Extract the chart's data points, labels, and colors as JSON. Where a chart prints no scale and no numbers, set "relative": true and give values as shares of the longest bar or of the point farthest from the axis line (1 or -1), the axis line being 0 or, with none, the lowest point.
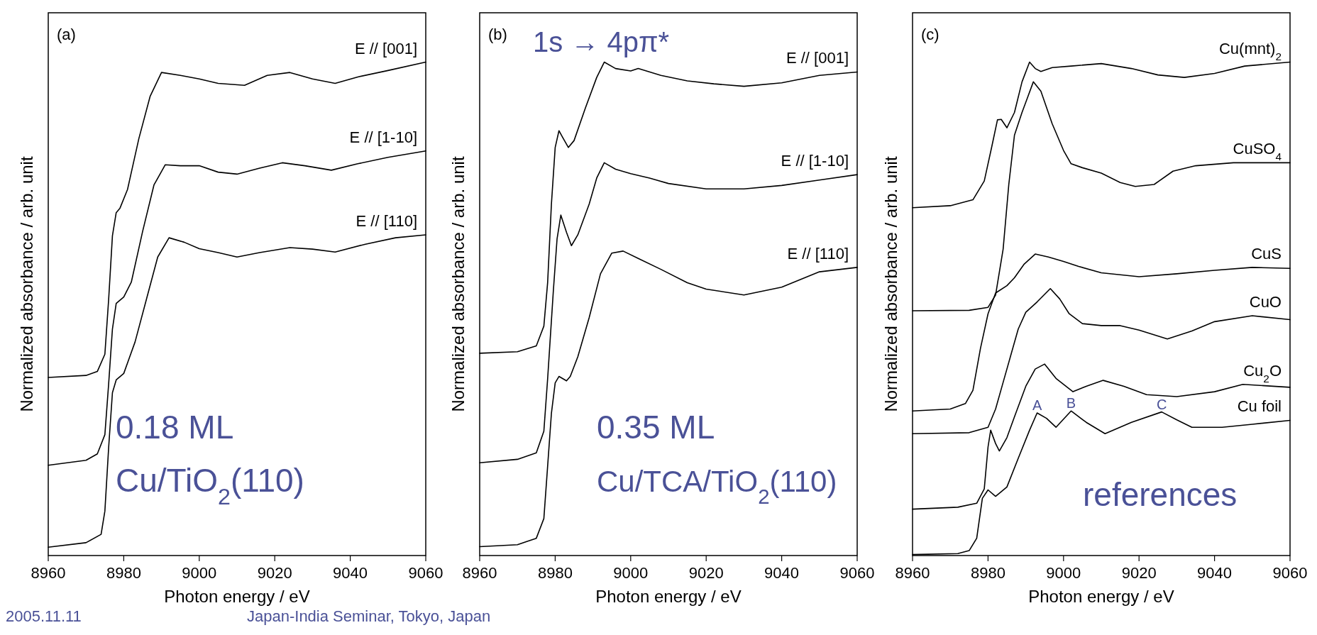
{
  "chart_data": [
    {
      "type": "line",
      "relative": true,
      "xlim": [
        8960,
        9060
      ],
      "xticks": [
        8960,
        8980,
        9000,
        9020,
        9040,
        9060
      ],
      "xlabel": "Photon energy / eV",
      "ylabel": "Normalized absorbance / arb. unit",
      "annotations": [
        "(a)",
        "0.18 ML",
        "Cu/TiO$_{2}$(110)",
        "2005.11.11",
        "Japan-India Seminar, Tokyo, Japan"
      ],
      "series": [
        {
          "name": "E // [001]",
          "color": "#000000",
          "x": [
            8960,
            8970,
            8973,
            8975,
            8976,
            8977,
            8978,
            8979,
            8981,
            8984,
            8987,
            8990,
            8995,
            9000,
            9005,
            9012,
            9018,
            9024,
            9030,
            9036,
            9042,
            9050,
            9060
          ],
          "values": [
            0.361,
            0.365,
            0.373,
            0.408,
            0.519,
            0.648,
            0.695,
            0.704,
            0.742,
            0.845,
            0.931,
            0.979,
            0.973,
            0.966,
            0.957,
            0.953,
            0.973,
            0.979,
            0.966,
            0.957,
            0.97,
            0.983,
            1
          ]
        },
        {
          "name": "E // [1-10]",
          "color": "#000000",
          "x": [
            8960,
            8970,
            8973,
            8975,
            8976,
            8977,
            8978,
            8980,
            8982,
            8985,
            8988,
            8991,
            8995,
            9000,
            9005,
            9010,
            9016,
            9022,
            9028,
            9035,
            9042,
            9050,
            9060
          ],
          "values": [
            0.183,
            0.193,
            0.206,
            0.245,
            0.348,
            0.459,
            0.511,
            0.524,
            0.554,
            0.657,
            0.751,
            0.792,
            0.79,
            0.79,
            0.777,
            0.773,
            0.785,
            0.796,
            0.79,
            0.781,
            0.794,
            0.807,
            0.82
          ]
        },
        {
          "name": "E // [110]",
          "color": "#000000",
          "x": [
            8960,
            8970,
            8974,
            8975,
            8976,
            8977,
            8978,
            8980,
            8983,
            8986,
            8989,
            8992,
            8996,
            9000,
            9005,
            9010,
            9016,
            9024,
            9030,
            9036,
            9044,
            9052,
            9060
          ],
          "values": [
            0.017,
            0.026,
            0.043,
            0.09,
            0.219,
            0.33,
            0.356,
            0.369,
            0.433,
            0.519,
            0.605,
            0.644,
            0.635,
            0.622,
            0.614,
            0.605,
            0.614,
            0.624,
            0.621,
            0.615,
            0.631,
            0.644,
            0.65
          ]
        }
      ]
    },
    {
      "type": "line",
      "relative": true,
      "xlim": [
        8960,
        9060
      ],
      "xticks": [
        8960,
        8980,
        9000,
        9020,
        9040,
        9060
      ],
      "xlabel": "Photon energy / eV",
      "ylabel": "Normalized absorbance / arb. unit",
      "annotations": [
        "(b)",
        "1s → 4pπ*",
        "0.35 ML",
        "Cu/TCA/TiO$_{2}$(110)"
      ],
      "series": [
        {
          "name": "E // [001]",
          "color": "#000000",
          "x": [
            8960,
            8970,
            8975,
            8977,
            8978,
            8979,
            8980,
            8981,
            8982,
            8983.5,
            8985,
            8988,
            8991,
            8993,
            8996,
            9000,
            9002,
            9008,
            9015,
            9022,
            9030,
            9040,
            9050,
            9060
          ],
          "values": [
            0.41,
            0.413,
            0.425,
            0.465,
            0.553,
            0.712,
            0.827,
            0.861,
            0.847,
            0.827,
            0.841,
            0.907,
            0.969,
            1,
            0.987,
            0.982,
            0.987,
            0.973,
            0.962,
            0.956,
            0.951,
            0.958,
            0.973,
            0.98
          ]
        },
        {
          "name": "E // [1-10]",
          "color": "#000000",
          "x": [
            8960,
            8970,
            8975,
            8977,
            8978,
            8979.5,
            8980.5,
            8981.5,
            8983,
            8984.3,
            8986,
            8989,
            8991,
            8993,
            8996,
            9000,
            9005,
            9010,
            9020,
            9030,
            9040,
            9050,
            9060
          ],
          "values": [
            0.188,
            0.195,
            0.208,
            0.252,
            0.358,
            0.535,
            0.642,
            0.69,
            0.655,
            0.628,
            0.65,
            0.712,
            0.765,
            0.796,
            0.783,
            0.774,
            0.765,
            0.754,
            0.743,
            0.743,
            0.75,
            0.761,
            0.772
          ]
        },
        {
          "name": "E // [110]",
          "color": "#000000",
          "x": [
            8960,
            8970,
            8975,
            8977,
            8978,
            8979,
            8980,
            8981,
            8983,
            8984,
            8986,
            8989,
            8992,
            8995,
            8998,
            9002,
            9008,
            9015,
            9020,
            9030,
            9040,
            9050,
            9060
          ],
          "values": [
            0.018,
            0.022,
            0.035,
            0.075,
            0.181,
            0.288,
            0.35,
            0.363,
            0.354,
            0.363,
            0.403,
            0.482,
            0.571,
            0.613,
            0.617,
            0.602,
            0.58,
            0.553,
            0.54,
            0.528,
            0.544,
            0.575,
            0.584
          ]
        }
      ]
    },
    {
      "type": "line",
      "relative": true,
      "xlim": [
        8960,
        9060
      ],
      "xticks": [
        8960,
        8980,
        9000,
        9020,
        9040,
        9060
      ],
      "xlabel": "Photon energy / eV",
      "ylabel": "Normalized absorbance / arb. unit",
      "annotations": [
        "(c)",
        "references",
        {
          "text": "A",
          "x": 8993,
          "y": 0.289
        },
        {
          "text": "B",
          "x": 9002,
          "y": 0.293
        },
        {
          "text": "C",
          "x": 9026,
          "y": 0.291
        }
      ],
      "series": [
        {
          "name": "Cu(mnt)$_{2}$",
          "color": "#000000",
          "x": [
            8960,
            8970,
            8976,
            8979,
            8981,
            8982.5,
            8983.5,
            8985,
            8987,
            8989,
            8991,
            8992.5,
            8994,
            8997,
            9002,
            9010,
            9018,
            9025,
            9032,
            9040,
            9048,
            9060
          ],
          "values": [
            0.705,
            0.709,
            0.721,
            0.759,
            0.829,
            0.883,
            0.884,
            0.867,
            0.898,
            0.96,
            1,
            0.987,
            0.981,
            0.989,
            0.992,
            0.997,
            0.987,
            0.974,
            0.969,
            0.977,
            0.992,
            1
          ]
        },
        {
          "name": "CuSO$_{4}$",
          "color": "#000000",
          "x": [
            8960,
            8975,
            8980,
            8982,
            8984,
            8985.5,
            8987,
            8989,
            8990.5,
            8992,
            8994,
            8997,
            9000,
            9002,
            9005,
            9010,
            9015,
            9019,
            9024,
            9029,
            9035,
            9045,
            9060
          ],
          "values": [
            0.496,
            0.497,
            0.503,
            0.528,
            0.621,
            0.752,
            0.852,
            0.898,
            0.929,
            0.96,
            0.941,
            0.875,
            0.821,
            0.794,
            0.786,
            0.775,
            0.756,
            0.748,
            0.752,
            0.779,
            0.79,
            0.796,
            0.796
          ]
        },
        {
          "name": "CuS",
          "color": "#000000",
          "x": [
            8960,
            8970,
            8974,
            8976,
            8978,
            8980,
            8982,
            8985,
            8987,
            8989.5,
            8992.5,
            8996,
            9000,
            9004,
            9010,
            9020,
            9030,
            9040,
            9050,
            9060
          ],
          "values": [
            0.293,
            0.297,
            0.308,
            0.335,
            0.42,
            0.49,
            0.532,
            0.547,
            0.563,
            0.59,
            0.611,
            0.605,
            0.596,
            0.586,
            0.573,
            0.565,
            0.571,
            0.578,
            0.584,
            0.582
          ]
        },
        {
          "name": "CuO",
          "color": "#000000",
          "x": [
            8960,
            8975,
            8980,
            8982,
            8984,
            8986,
            8988,
            8990,
            8993,
            8996.5,
            8999,
            9001.5,
            9005,
            9010,
            9015,
            9020,
            9027.5,
            9034,
            9040,
            9050,
            9060
          ],
          "values": [
            0.247,
            0.249,
            0.26,
            0.297,
            0.351,
            0.405,
            0.459,
            0.493,
            0.514,
            0.541,
            0.52,
            0.49,
            0.47,
            0.466,
            0.466,
            0.457,
            0.439,
            0.455,
            0.474,
            0.486,
            0.478
          ]
        },
        {
          "name": "Cu$_{2}$O",
          "color": "#000000",
          "x": [
            8960,
            8972,
            8977,
            8979,
            8980,
            8980.7,
            8982,
            8983,
            8985,
            8987,
            8990,
            8992.5,
            8995,
            8998,
            9002.5,
            9006,
            9010.5,
            9016,
            9022,
            9030,
            9040,
            9047.5,
            9060
          ],
          "values": [
            0.094,
            0.098,
            0.106,
            0.135,
            0.22,
            0.254,
            0.227,
            0.212,
            0.239,
            0.281,
            0.343,
            0.378,
            0.388,
            0.359,
            0.332,
            0.343,
            0.355,
            0.343,
            0.326,
            0.322,
            0.332,
            0.347,
            0.341
          ]
        },
        {
          "name": "Cu foil",
          "color": "#000000",
          "x": [
            8960,
            8972,
            8975,
            8977,
            8978.5,
            8980,
            8982,
            8985,
            8988,
            8991,
            8993,
            8995.5,
            8998,
            9002,
            9006,
            9011,
            9018,
            9026,
            9030,
            9034,
            9042,
            9050,
            9060
          ],
          "values": [
            0.002,
            0.004,
            0.01,
            0.035,
            0.116,
            0.133,
            0.12,
            0.139,
            0.197,
            0.254,
            0.289,
            0.278,
            0.26,
            0.293,
            0.27,
            0.247,
            0.27,
            0.291,
            0.275,
            0.26,
            0.26,
            0.266,
            0.274
          ]
        }
      ]
    }
  ]
}
